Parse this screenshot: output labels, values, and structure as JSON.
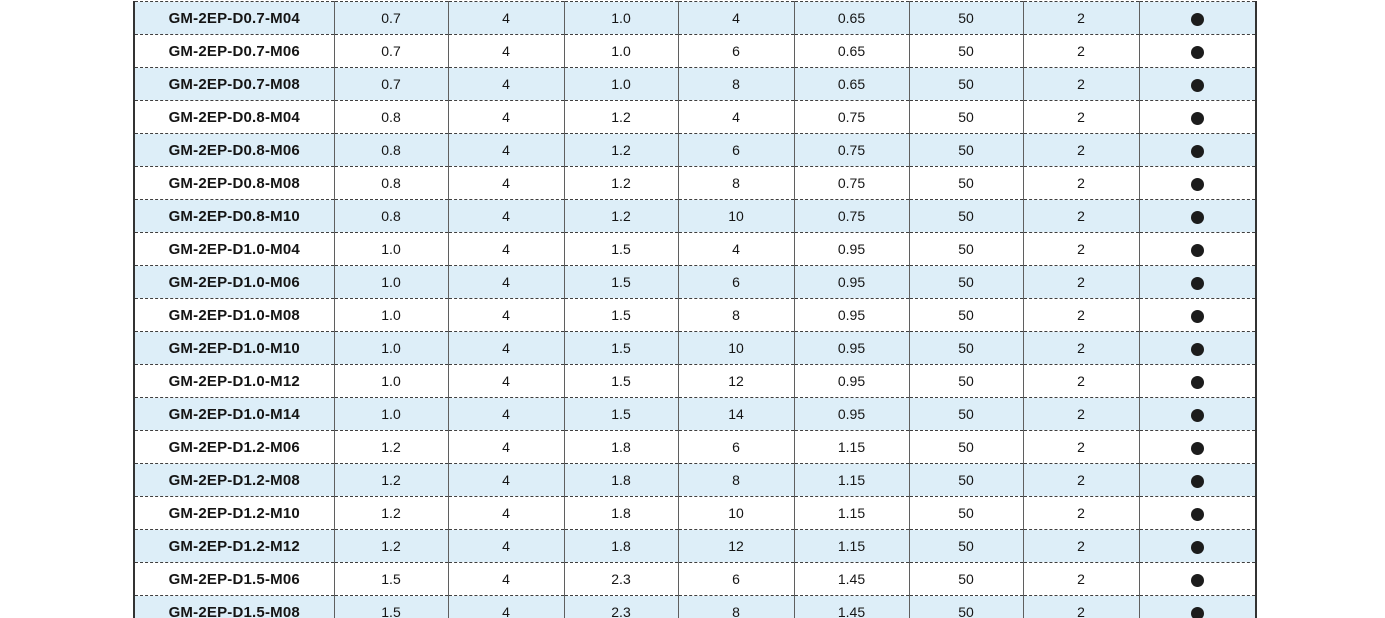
{
  "table": {
    "description_visible_header": "",
    "rows": [
      [
        "GM-2EP-D0.7-M04",
        "0.7",
        "4",
        "1.0",
        "4",
        "0.65",
        "50",
        "2",
        "●"
      ],
      [
        "GM-2EP-D0.7-M06",
        "0.7",
        "4",
        "1.0",
        "6",
        "0.65",
        "50",
        "2",
        "●"
      ],
      [
        "GM-2EP-D0.7-M08",
        "0.7",
        "4",
        "1.0",
        "8",
        "0.65",
        "50",
        "2",
        "●"
      ],
      [
        "GM-2EP-D0.8-M04",
        "0.8",
        "4",
        "1.2",
        "4",
        "0.75",
        "50",
        "2",
        "●"
      ],
      [
        "GM-2EP-D0.8-M06",
        "0.8",
        "4",
        "1.2",
        "6",
        "0.75",
        "50",
        "2",
        "●"
      ],
      [
        "GM-2EP-D0.8-M08",
        "0.8",
        "4",
        "1.2",
        "8",
        "0.75",
        "50",
        "2",
        "●"
      ],
      [
        "GM-2EP-D0.8-M10",
        "0.8",
        "4",
        "1.2",
        "10",
        "0.75",
        "50",
        "2",
        "●"
      ],
      [
        "GM-2EP-D1.0-M04",
        "1.0",
        "4",
        "1.5",
        "4",
        "0.95",
        "50",
        "2",
        "●"
      ],
      [
        "GM-2EP-D1.0-M06",
        "1.0",
        "4",
        "1.5",
        "6",
        "0.95",
        "50",
        "2",
        "●"
      ],
      [
        "GM-2EP-D1.0-M08",
        "1.0",
        "4",
        "1.5",
        "8",
        "0.95",
        "50",
        "2",
        "●"
      ],
      [
        "GM-2EP-D1.0-M10",
        "1.0",
        "4",
        "1.5",
        "10",
        "0.95",
        "50",
        "2",
        "●"
      ],
      [
        "GM-2EP-D1.0-M12",
        "1.0",
        "4",
        "1.5",
        "12",
        "0.95",
        "50",
        "2",
        "●"
      ],
      [
        "GM-2EP-D1.0-M14",
        "1.0",
        "4",
        "1.5",
        "14",
        "0.95",
        "50",
        "2",
        "●"
      ],
      [
        "GM-2EP-D1.2-M06",
        "1.2",
        "4",
        "1.8",
        "6",
        "1.15",
        "50",
        "2",
        "●"
      ],
      [
        "GM-2EP-D1.2-M08",
        "1.2",
        "4",
        "1.8",
        "8",
        "1.15",
        "50",
        "2",
        "●"
      ],
      [
        "GM-2EP-D1.2-M10",
        "1.2",
        "4",
        "1.8",
        "10",
        "1.15",
        "50",
        "2",
        "●"
      ],
      [
        "GM-2EP-D1.2-M12",
        "1.2",
        "4",
        "1.8",
        "12",
        "1.15",
        "50",
        "2",
        "●"
      ],
      [
        "GM-2EP-D1.5-M06",
        "1.5",
        "4",
        "2.3",
        "6",
        "1.45",
        "50",
        "2",
        "●"
      ],
      [
        "GM-2EP-D1.5-M08",
        "1.5",
        "4",
        "2.3",
        "8",
        "1.45",
        "50",
        "2",
        "●"
      ]
    ],
    "availability_symbol": "●"
  },
  "colors": {
    "row_alt_background": "#ddeef8",
    "row_background": "#ffffff",
    "outer_border": "#333333",
    "bottom_border": "#151515",
    "vertical_separator": "#5f5f5f",
    "dashed_separator": "#3f3f3f",
    "text": "#151515",
    "dot": "#1c1c1c",
    "page_background": "#ffffff"
  }
}
